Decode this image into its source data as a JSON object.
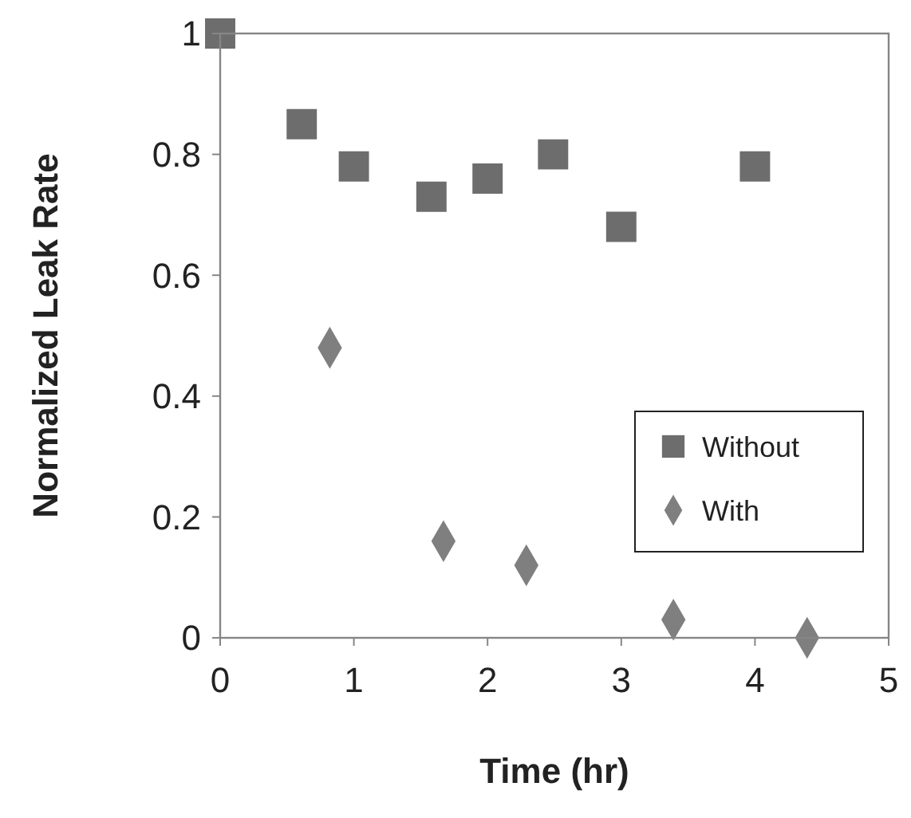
{
  "chart_data": {
    "type": "scatter",
    "xlabel": "Time (hr)",
    "ylabel": "Normalized Leak Rate",
    "xlim": [
      0,
      5
    ],
    "ylim": [
      0,
      1
    ],
    "xticks": [
      0,
      1,
      2,
      3,
      4,
      5
    ],
    "yticks": [
      0,
      0.2,
      0.4,
      0.6,
      0.8,
      1
    ],
    "grid": false,
    "legend": "right",
    "series": [
      {
        "name": "Without",
        "color": "#6d6d6d",
        "marker": "square",
        "x": [
          0,
          0.61,
          1,
          1.58,
          2,
          2.49,
          3,
          4
        ],
        "values": [
          1,
          0.85,
          0.78,
          0.73,
          0.76,
          0.8,
          0.68,
          0.78
        ]
      },
      {
        "name": "With",
        "color": "#7f7f7f",
        "marker": "diamond",
        "x": [
          0.82,
          1.67,
          2.29,
          3.39,
          4.39
        ],
        "values": [
          0.48,
          0.16,
          0.12,
          0.03,
          0
        ]
      }
    ]
  }
}
